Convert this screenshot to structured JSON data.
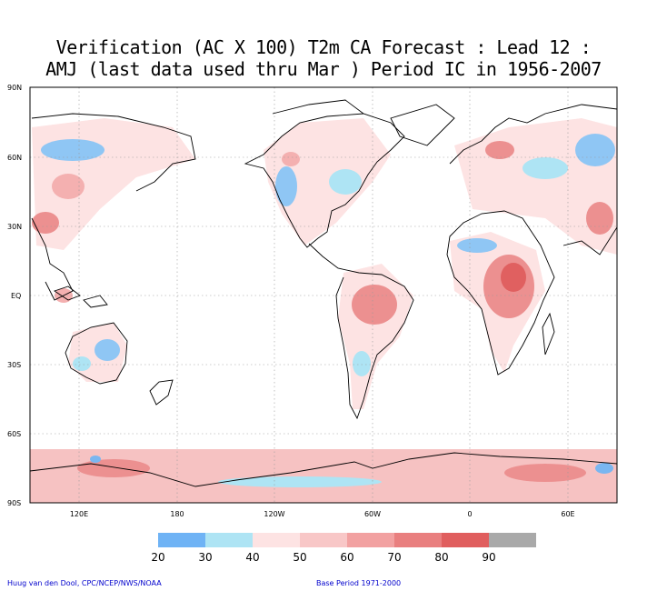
{
  "title": {
    "line1": "Verification (AC X 100) T2m CA Forecast : Lead 12 :",
    "line2": "AMJ (last data used thru Mar ) Period IC in 1956-2007"
  },
  "axes": {
    "lat_labels": [
      "90N",
      "60N",
      "30N",
      "EQ",
      "30S",
      "60S",
      "90S"
    ],
    "lon_labels": [
      "120E",
      "180",
      "120W",
      "60W",
      "0",
      "60E"
    ]
  },
  "colorbar": {
    "labels": [
      "20",
      "30",
      "40",
      "50",
      "60",
      "70",
      "80",
      "90"
    ],
    "colors": [
      "#6fb3f5",
      "#aee4f4",
      "#fde3e3",
      "#f8c7c7",
      "#f2a1a1",
      "#e97f7f",
      "#e05e5e",
      "#a9a9a9"
    ]
  },
  "colors": {
    "land_outline": "#000000",
    "grid": "#999999"
  },
  "footer": {
    "left": "Huug van den Dool, CPC/NCEP/NWS/NOAA",
    "right": "Base Period 1971-2000"
  }
}
